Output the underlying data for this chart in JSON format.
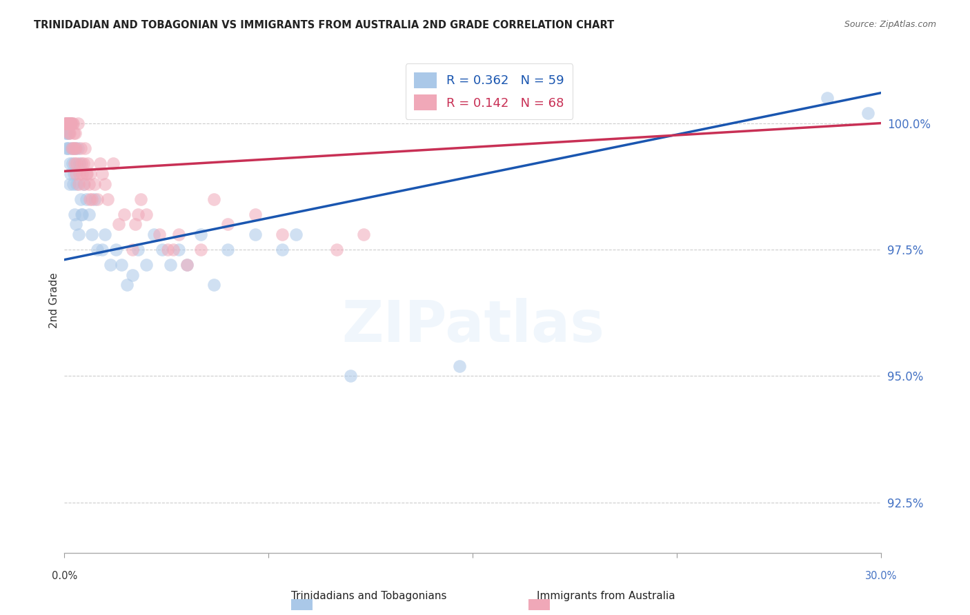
{
  "title": "TRINIDADIAN AND TOBAGONIAN VS IMMIGRANTS FROM AUSTRALIA 2ND GRADE CORRELATION CHART",
  "source": "Source: ZipAtlas.com",
  "ylabel": "2nd Grade",
  "y_ticks": [
    92.5,
    95.0,
    97.5,
    100.0
  ],
  "y_tick_labels": [
    "92.5%",
    "95.0%",
    "97.5%",
    "100.0%"
  ],
  "xlim": [
    0.0,
    30.0
  ],
  "ylim": [
    91.5,
    101.5
  ],
  "legend_blue_r": "R = 0.362",
  "legend_blue_n": "N = 59",
  "legend_pink_r": "R = 0.142",
  "legend_pink_n": "N = 68",
  "legend_bottom_blue": "Trinidadians and Tobagonians",
  "legend_bottom_pink": "Immigrants from Australia",
  "blue_color": "#aac8e8",
  "pink_color": "#f0a8b8",
  "blue_line_color": "#1a56b0",
  "pink_line_color": "#c83055",
  "blue_legend_text_color": "#1a56b0",
  "pink_legend_text_color": "#c83055",
  "right_tick_color": "#4472c4",
  "watermark_text": "ZIPatlas",
  "blue_line_x0": 0.0,
  "blue_line_y0": 97.3,
  "blue_line_x1": 30.0,
  "blue_line_y1": 100.6,
  "pink_line_x0": 0.0,
  "pink_line_y0": 99.05,
  "pink_line_x1": 30.0,
  "pink_line_y1": 100.0,
  "blue_x": [
    0.05,
    0.08,
    0.1,
    0.12,
    0.15,
    0.18,
    0.2,
    0.22,
    0.25,
    0.28,
    0.3,
    0.35,
    0.4,
    0.45,
    0.5,
    0.55,
    0.6,
    0.65,
    0.7,
    0.8,
    0.9,
    1.0,
    1.1,
    1.2,
    1.4,
    1.5,
    1.7,
    1.9,
    2.1,
    2.3,
    2.5,
    2.7,
    3.0,
    3.3,
    3.6,
    3.9,
    4.2,
    4.5,
    5.0,
    5.5,
    6.0,
    7.0,
    8.0,
    8.5,
    10.5,
    14.5,
    28.0,
    29.5,
    0.06,
    0.09,
    0.13,
    0.16,
    0.19,
    0.23,
    0.32,
    0.38,
    0.42,
    0.52,
    0.62
  ],
  "blue_y": [
    100.0,
    99.8,
    99.5,
    100.0,
    99.8,
    100.0,
    99.2,
    100.0,
    100.0,
    99.5,
    99.2,
    99.0,
    99.5,
    98.8,
    99.5,
    99.2,
    98.5,
    98.2,
    98.8,
    98.5,
    98.2,
    97.8,
    98.5,
    97.5,
    97.5,
    97.8,
    97.2,
    97.5,
    97.2,
    96.8,
    97.0,
    97.5,
    97.2,
    97.8,
    97.5,
    97.2,
    97.5,
    97.2,
    97.8,
    96.8,
    97.5,
    97.8,
    97.5,
    97.8,
    95.0,
    95.2,
    100.5,
    100.2,
    99.8,
    99.5,
    100.0,
    99.5,
    98.8,
    99.0,
    98.8,
    98.2,
    98.0,
    97.8,
    98.2
  ],
  "pink_x": [
    0.05,
    0.08,
    0.1,
    0.12,
    0.15,
    0.18,
    0.2,
    0.22,
    0.25,
    0.28,
    0.3,
    0.32,
    0.35,
    0.38,
    0.4,
    0.42,
    0.45,
    0.5,
    0.55,
    0.6,
    0.65,
    0.7,
    0.75,
    0.8,
    0.85,
    0.9,
    0.95,
    1.0,
    1.1,
    1.2,
    1.4,
    1.6,
    1.8,
    2.0,
    2.2,
    2.5,
    2.8,
    3.0,
    3.5,
    4.0,
    4.5,
    5.5,
    7.0,
    8.0,
    2.6,
    2.7,
    3.8,
    4.2,
    5.0,
    6.0,
    10.0,
    11.0,
    0.06,
    0.09,
    0.13,
    0.16,
    0.19,
    0.23,
    0.32,
    0.38,
    0.42,
    0.52,
    0.62,
    0.72,
    0.82,
    0.92,
    1.3,
    1.5
  ],
  "pink_y": [
    100.0,
    100.0,
    100.0,
    100.0,
    100.0,
    100.0,
    99.8,
    100.0,
    100.0,
    99.5,
    100.0,
    100.0,
    99.8,
    99.5,
    99.8,
    99.5,
    99.2,
    100.0,
    99.0,
    99.5,
    99.0,
    99.2,
    99.5,
    99.0,
    99.2,
    98.8,
    99.0,
    98.5,
    98.8,
    98.5,
    99.0,
    98.5,
    99.2,
    98.0,
    98.2,
    97.5,
    98.5,
    98.2,
    97.8,
    97.5,
    97.2,
    98.5,
    98.2,
    97.8,
    98.0,
    98.2,
    97.5,
    97.8,
    97.5,
    98.0,
    97.5,
    97.8,
    100.0,
    100.0,
    100.0,
    99.8,
    100.0,
    100.0,
    99.5,
    99.2,
    99.0,
    98.8,
    99.2,
    98.8,
    99.0,
    98.5,
    99.2,
    98.8
  ]
}
